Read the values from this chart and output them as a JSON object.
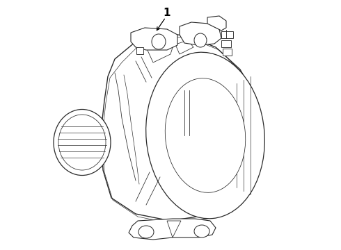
{
  "background_color": "#ffffff",
  "line_color": "#2a2a2a",
  "line_width": 0.8,
  "label_number": "1",
  "fig_width": 4.9,
  "fig_height": 3.6,
  "dpi": 100
}
